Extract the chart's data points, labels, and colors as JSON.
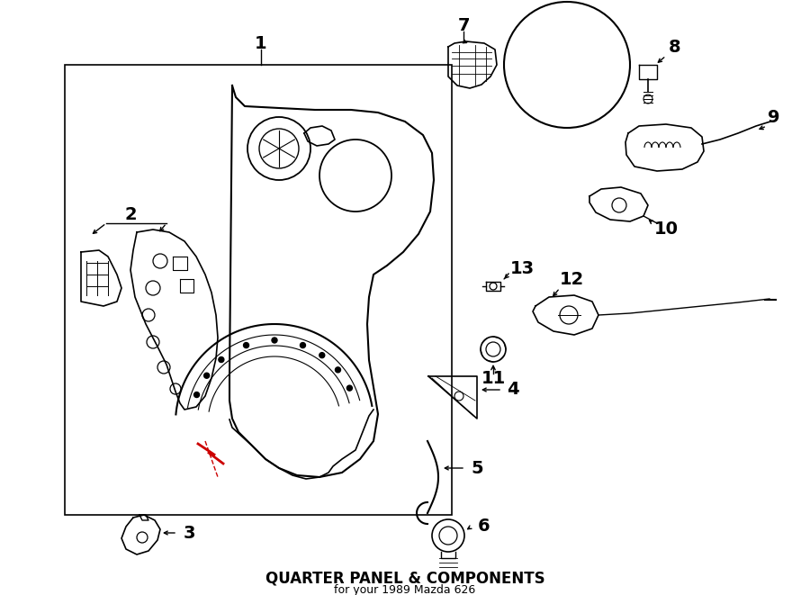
{
  "title": "QUARTER PANEL & COMPONENTS",
  "subtitle": "for your 1989 Mazda 626",
  "bg_color": "#ffffff",
  "line_color": "#000000",
  "red_color": "#cc0000",
  "fig_width": 9.0,
  "fig_height": 6.61,
  "dpi": 100
}
